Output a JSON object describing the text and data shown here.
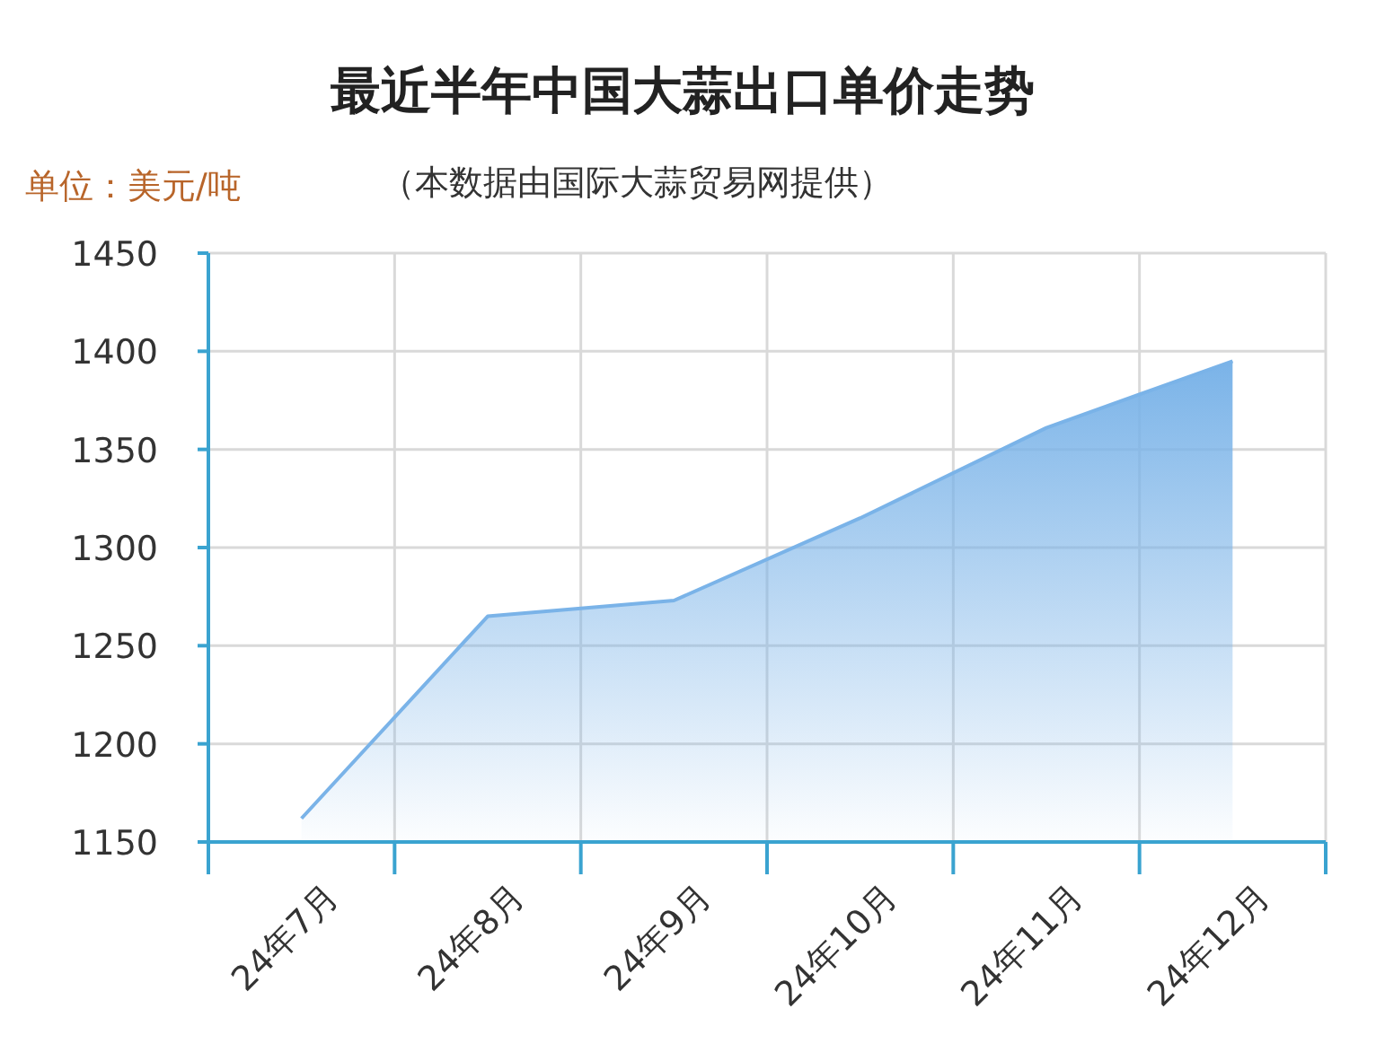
{
  "chart_data": {
    "type": "area",
    "title": "最近半年中国大蒜出口单价走势",
    "subtitle": "（本数据由国际大蒜贸易网提供）",
    "ylabel": "单位：美元/吨",
    "categories": [
      "24年7月",
      "24年8月",
      "24年9月",
      "24年10月",
      "24年11月",
      "24年12月"
    ],
    "series": [
      {
        "color": "#7ab3e8",
        "values": [
          1162,
          1265,
          1273,
          1315,
          1361,
          1395
        ]
      }
    ],
    "ylim": [
      1150,
      1450
    ],
    "yticks": [
      1150,
      1200,
      1250,
      1300,
      1350,
      1400,
      1450
    ],
    "grid": true
  }
}
